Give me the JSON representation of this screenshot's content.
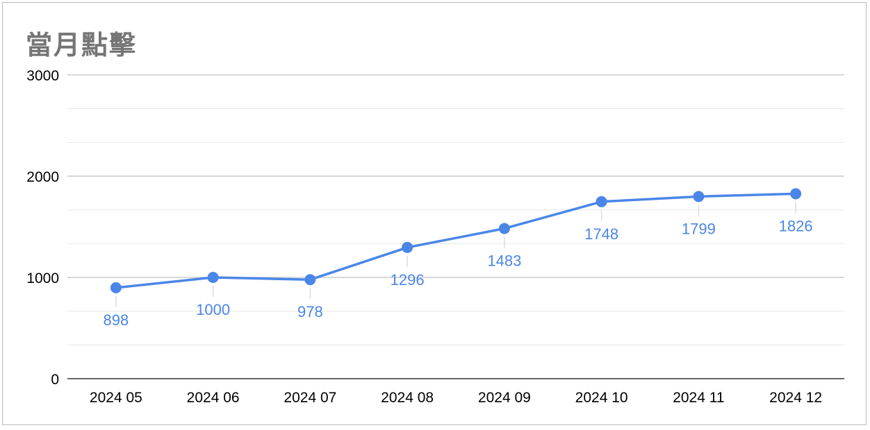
{
  "chart_data": {
    "type": "line",
    "title": "當月點擊",
    "xlabel": "",
    "ylabel": "",
    "categories": [
      "2024 05",
      "2024 06",
      "2024 07",
      "2024 08",
      "2024 09",
      "2024 10",
      "2024 11",
      "2024 12"
    ],
    "series": [
      {
        "values": [
          898,
          1000,
          978,
          1296,
          1483,
          1748,
          1799,
          1826
        ]
      }
    ],
    "yticks": [
      "0",
      "1000",
      "2000",
      "3000"
    ],
    "ylim": [
      0,
      3000
    ],
    "minor_gridlines": true,
    "data_labels": true,
    "legend": "none",
    "colors": {
      "line": "#4a86e8",
      "label": "#4a86e8",
      "title": "#757575",
      "grid": "#cccccc"
    }
  }
}
